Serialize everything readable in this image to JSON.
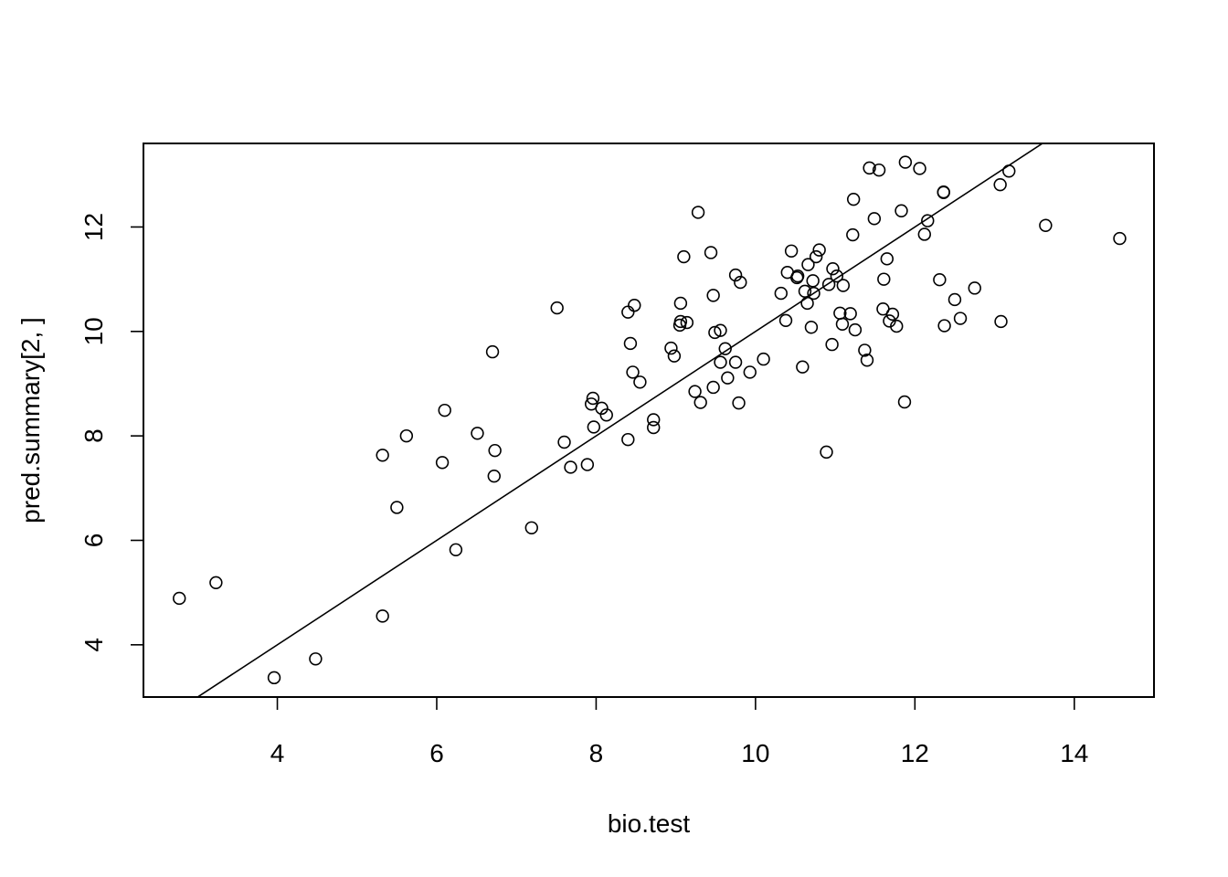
{
  "chart_data": {
    "type": "scatter",
    "title": "",
    "xlabel": "bio.test",
    "ylabel": "pred.summary[2, ]",
    "xlim": [
      2.32,
      15.0
    ],
    "ylim": [
      3.0,
      13.6
    ],
    "xticks": [
      4,
      6,
      8,
      10,
      12,
      14
    ],
    "yticks": [
      4,
      6,
      8,
      10,
      12
    ],
    "grid": false,
    "colors": {
      "points": "#000000",
      "line": "#000000",
      "frame": "#000000",
      "background": "#ffffff"
    },
    "marker": "open-circle",
    "abline": {
      "intercept": 0,
      "slope": 1
    },
    "points": [
      [
        2.77,
        4.89
      ],
      [
        3.23,
        5.19
      ],
      [
        3.96,
        3.37
      ],
      [
        4.48,
        3.73
      ],
      [
        5.32,
        7.63
      ],
      [
        5.32,
        4.55
      ],
      [
        5.5,
        6.63
      ],
      [
        5.62,
        8.0
      ],
      [
        6.07,
        7.49
      ],
      [
        6.1,
        8.49
      ],
      [
        6.24,
        5.82
      ],
      [
        6.51,
        8.05
      ],
      [
        6.7,
        9.61
      ],
      [
        6.72,
        7.23
      ],
      [
        6.73,
        7.72
      ],
      [
        7.19,
        6.24
      ],
      [
        7.51,
        10.45
      ],
      [
        7.6,
        7.88
      ],
      [
        7.68,
        7.4
      ],
      [
        7.89,
        7.45
      ],
      [
        7.94,
        8.61
      ],
      [
        7.96,
        8.72
      ],
      [
        7.97,
        8.17
      ],
      [
        8.07,
        8.53
      ],
      [
        8.13,
        8.4
      ],
      [
        8.4,
        10.37
      ],
      [
        8.4,
        7.93
      ],
      [
        8.43,
        9.77
      ],
      [
        8.46,
        9.22
      ],
      [
        8.48,
        10.5
      ],
      [
        8.55,
        9.03
      ],
      [
        8.72,
        8.16
      ],
      [
        8.72,
        8.31
      ],
      [
        8.94,
        9.68
      ],
      [
        8.98,
        9.53
      ],
      [
        9.05,
        10.12
      ],
      [
        9.06,
        10.19
      ],
      [
        9.06,
        10.54
      ],
      [
        9.1,
        11.43
      ],
      [
        9.14,
        10.17
      ],
      [
        9.24,
        8.85
      ],
      [
        9.28,
        12.28
      ],
      [
        9.31,
        8.64
      ],
      [
        9.44,
        11.51
      ],
      [
        9.47,
        10.69
      ],
      [
        9.47,
        8.93
      ],
      [
        9.49,
        9.98
      ],
      [
        9.56,
        10.02
      ],
      [
        9.56,
        9.41
      ],
      [
        9.62,
        9.67
      ],
      [
        9.65,
        9.11
      ],
      [
        9.75,
        9.41
      ],
      [
        9.75,
        11.08
      ],
      [
        9.79,
        8.63
      ],
      [
        9.81,
        10.94
      ],
      [
        9.93,
        9.22
      ],
      [
        10.1,
        9.47
      ],
      [
        10.32,
        10.73
      ],
      [
        10.38,
        10.21
      ],
      [
        10.4,
        11.13
      ],
      [
        10.45,
        11.54
      ],
      [
        10.52,
        11.03
      ],
      [
        10.53,
        11.06
      ],
      [
        10.59,
        9.32
      ],
      [
        10.62,
        10.77
      ],
      [
        10.65,
        10.54
      ],
      [
        10.66,
        11.28
      ],
      [
        10.7,
        10.08
      ],
      [
        10.72,
        10.97
      ],
      [
        10.73,
        10.73
      ],
      [
        10.76,
        11.43
      ],
      [
        10.8,
        11.56
      ],
      [
        10.89,
        7.69
      ],
      [
        10.92,
        10.9
      ],
      [
        10.96,
        9.75
      ],
      [
        10.97,
        11.2
      ],
      [
        11.02,
        11.06
      ],
      [
        11.06,
        10.35
      ],
      [
        11.09,
        10.14
      ],
      [
        11.1,
        10.88
      ],
      [
        11.19,
        10.34
      ],
      [
        11.22,
        11.85
      ],
      [
        11.23,
        12.53
      ],
      [
        11.25,
        10.03
      ],
      [
        11.37,
        9.64
      ],
      [
        11.4,
        9.45
      ],
      [
        11.43,
        13.13
      ],
      [
        11.49,
        12.16
      ],
      [
        11.55,
        13.09
      ],
      [
        11.6,
        10.43
      ],
      [
        11.61,
        11.0
      ],
      [
        11.65,
        11.39
      ],
      [
        11.68,
        10.2
      ],
      [
        11.72,
        10.33
      ],
      [
        11.77,
        10.1
      ],
      [
        11.83,
        12.31
      ],
      [
        11.87,
        8.65
      ],
      [
        11.88,
        13.24
      ],
      [
        12.06,
        13.12
      ],
      [
        12.12,
        11.86
      ],
      [
        12.16,
        12.12
      ],
      [
        12.31,
        10.99
      ],
      [
        12.36,
        12.67
      ],
      [
        12.36,
        12.66
      ],
      [
        12.37,
        10.11
      ],
      [
        12.5,
        10.61
      ],
      [
        12.57,
        10.25
      ],
      [
        12.75,
        10.83
      ],
      [
        13.07,
        12.81
      ],
      [
        13.08,
        10.19
      ],
      [
        13.18,
        13.07
      ],
      [
        13.64,
        12.03
      ],
      [
        14.57,
        11.78
      ]
    ]
  }
}
